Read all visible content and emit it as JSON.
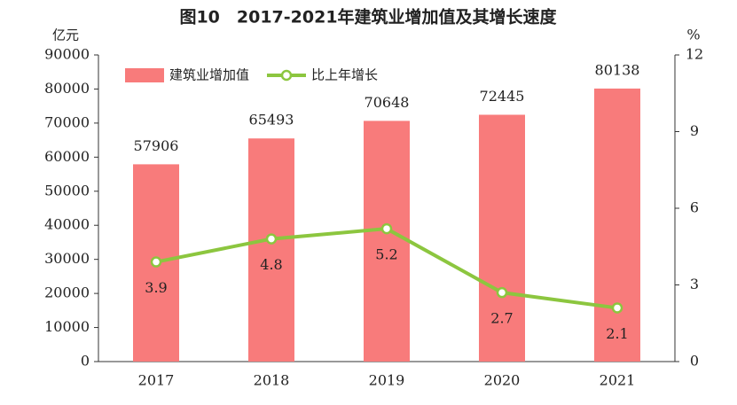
{
  "chart_data": {
    "type": "bar",
    "title": "图10　2017-2021年建筑业增加值及其增长速度",
    "y_label": "亿元",
    "y2_label": "%",
    "categories": [
      "2017",
      "2018",
      "2019",
      "2020",
      "2021"
    ],
    "series": [
      {
        "name": "建筑业增加值",
        "color": "#f87b7b",
        "values": [
          57906,
          65493,
          70648,
          72445,
          80138
        ]
      },
      {
        "name": "比上年增长",
        "color": "#8cc63f",
        "type": "line",
        "axis": "y2",
        "values": [
          3.9,
          4.8,
          5.2,
          2.7,
          2.1
        ]
      }
    ],
    "ylim": [
      0,
      90000
    ],
    "yticks": [
      0,
      10000,
      20000,
      30000,
      40000,
      50000,
      60000,
      70000,
      80000,
      90000
    ],
    "y2lim": [
      0,
      12
    ],
    "y2ticks": [
      0,
      3,
      6,
      9,
      12
    ],
    "legend": "upper left"
  }
}
